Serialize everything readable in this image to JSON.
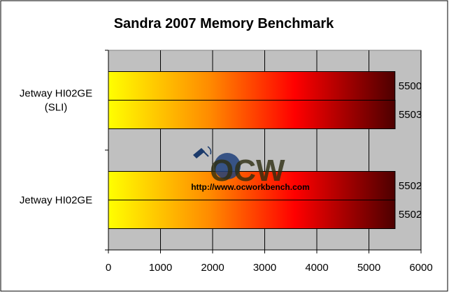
{
  "chart_data": {
    "type": "bar",
    "orientation": "horizontal",
    "title": "Sandra 2007 Memory Benchmark",
    "categories": [
      "Jetway HI02GE (SLI)",
      "Jetway HI02GE"
    ],
    "category_lines": [
      [
        "Jetway HI02GE",
        "(SLI)"
      ],
      [
        "Jetway HI02GE"
      ]
    ],
    "series": [
      {
        "values": [
          5500,
          5502
        ]
      },
      {
        "values": [
          5503,
          5502
        ]
      }
    ],
    "xlim": [
      0,
      6000
    ],
    "xticks": [
      0,
      1000,
      2000,
      3000,
      4000,
      5000,
      6000
    ],
    "grid": true,
    "legend": "none",
    "colors": {
      "plot_bg": "#c0c0c0",
      "bar_gradient": [
        "#ffff00",
        "#ff8c00",
        "#ff0000",
        "#4d0000"
      ]
    }
  },
  "watermark": {
    "logo_text": "OCW",
    "url": "http://www.ocworkbench.com"
  }
}
